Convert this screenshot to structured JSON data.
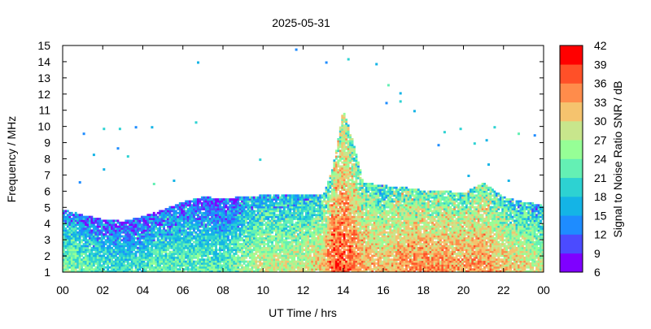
{
  "chart_data": {
    "type": "heatmap",
    "title": "2025-05-31",
    "xlabel": "UT Time / hrs",
    "ylabel": "Frequency / MHz",
    "colorbar_label": "Signal to Noise Ratio SNR / dB",
    "x_ticks": [
      "00",
      "02",
      "04",
      "06",
      "08",
      "10",
      "12",
      "14",
      "16",
      "18",
      "20",
      "22",
      "00"
    ],
    "xlim": [
      0,
      24
    ],
    "y_ticks": [
      "1",
      "2",
      "3",
      "4",
      "5",
      "6",
      "7",
      "8",
      "9",
      "10",
      "11",
      "12",
      "13",
      "14",
      "15"
    ],
    "ylim": [
      1,
      15
    ],
    "colorbar_ticks": [
      "6",
      "9",
      "12",
      "15",
      "18",
      "21",
      "24",
      "27",
      "30",
      "33",
      "36",
      "39",
      "42"
    ],
    "colorbar_range": [
      6,
      42
    ],
    "colorbar_colors": [
      "#7f00ff",
      "#4b4bff",
      "#1e8cff",
      "#14b4e6",
      "#2dd2d2",
      "#64f0b4",
      "#96ff96",
      "#c8e68c",
      "#f5c36e",
      "#ff8c4b",
      "#ff5028",
      "#ff0000"
    ],
    "snr_profile_description_hours": [
      0,
      1,
      2,
      3,
      4,
      5,
      6,
      7,
      8,
      9,
      10,
      11,
      12,
      13,
      13.5,
      14,
      14.5,
      15,
      16,
      17,
      18,
      19,
      20,
      21,
      22,
      23,
      24
    ],
    "max_freq_mhz": [
      4.8,
      4.5,
      4.2,
      4.1,
      4.4,
      4.8,
      5.3,
      5.6,
      5.5,
      5.6,
      5.7,
      5.7,
      5.7,
      5.7,
      7.5,
      11.0,
      9.0,
      6.5,
      6.3,
      6.2,
      6.0,
      6.0,
      5.8,
      6.5,
      5.6,
      5.3,
      5.1
    ],
    "peak_snr_db": [
      30,
      28,
      26,
      25,
      26,
      28,
      27,
      27,
      26,
      30,
      33,
      32,
      33,
      36,
      42,
      42,
      40,
      38,
      36,
      39,
      39,
      39,
      38,
      39,
      36,
      34,
      32
    ]
  }
}
